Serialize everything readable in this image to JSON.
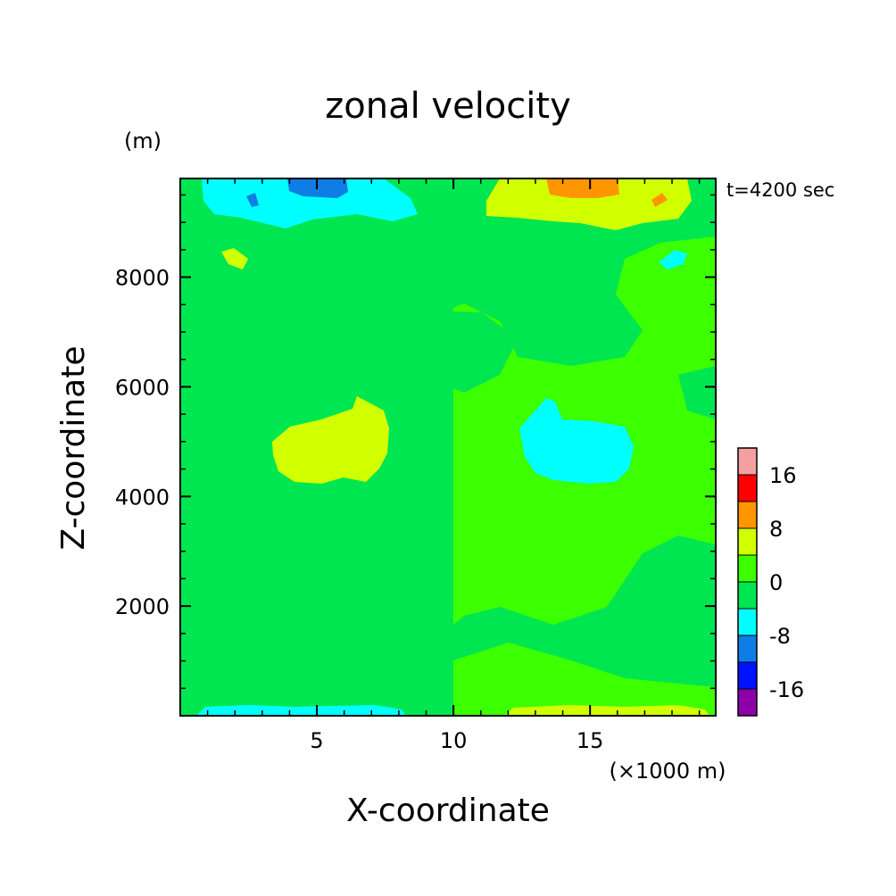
{
  "chart_data": {
    "type": "heatmap",
    "title": "zonal velocity",
    "xlabel": "X-coordinate",
    "ylabel": "Z-coordinate",
    "x_unit": "(×1000 m)",
    "y_unit": "(m)",
    "time_label": "t=4200 sec",
    "xlim": [
      0,
      19.6
    ],
    "ylim": [
      0,
      9800
    ],
    "x_ticks": [
      5,
      10,
      15
    ],
    "y_ticks": [
      2000,
      4000,
      6000,
      8000
    ],
    "colorbar": {
      "levels": [
        -20,
        -16,
        -12,
        -8,
        -4,
        0,
        4,
        8,
        12,
        16,
        20
      ],
      "colors": [
        "#8c00aa",
        "#0012ff",
        "#0f7de6",
        "#00ffff",
        "#00e650",
        "#3cff00",
        "#d2ff00",
        "#ff9600",
        "#ff0000",
        "#f5a0a0"
      ],
      "tick_labels": [
        "16",
        "8",
        "0",
        "-8",
        "-16"
      ],
      "tick_values": [
        16,
        8,
        0,
        -8,
        -16
      ]
    },
    "regions": [
      {
        "value": 2,
        "label": "weak positive flow (background, right-center column)"
      },
      {
        "value": -2,
        "label": "weak negative flow (left-center, upper and lower bands)"
      },
      {
        "value": 6,
        "label": "positive core, x≈4-8 km, z≈4300-6000 m"
      },
      {
        "value": -6,
        "label": "negative core, x≈12.5-16.5 km, z≈4300-5700 m"
      },
      {
        "value": -6,
        "label": "negative jet near top, x≈1-9 km"
      },
      {
        "value": -10,
        "label": "strong negative near top, x≈4-6 km"
      },
      {
        "value": 6,
        "label": "positive jet near top, x≈11-19 km"
      },
      {
        "value": 10,
        "label": "strong positive near top, x≈13.5-16 km"
      }
    ],
    "grid": false
  }
}
